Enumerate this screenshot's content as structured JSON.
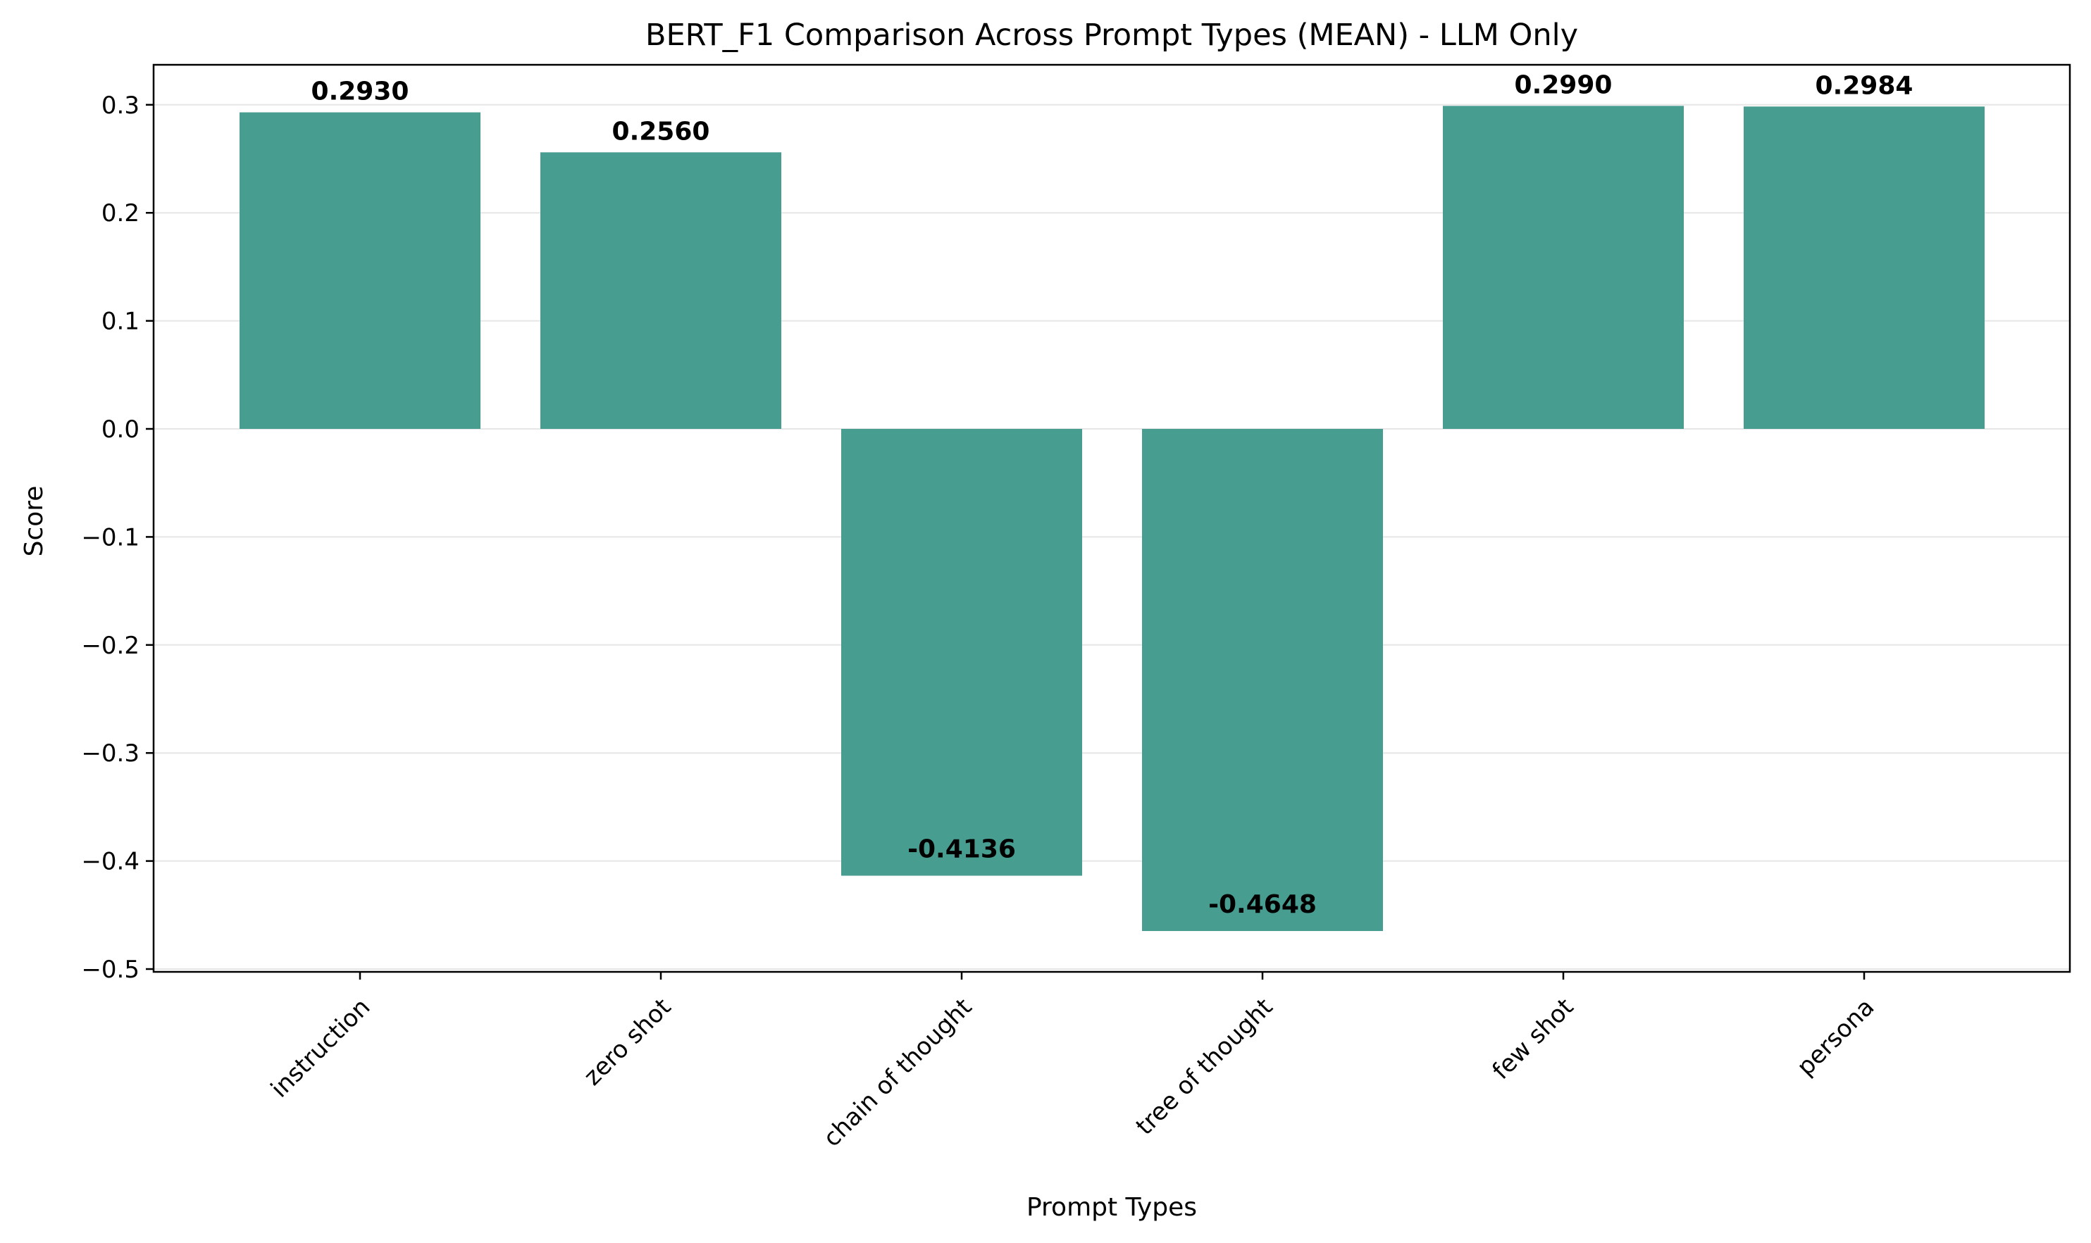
{
  "chart_data": {
    "type": "bar",
    "title": "BERT_F1 Comparison Across Prompt Types (MEAN) - LLM Only",
    "xlabel": "Prompt Types",
    "ylabel": "Score",
    "categories": [
      "instruction",
      "zero shot",
      "chain of thought",
      "tree of thought",
      "few shot",
      "persona"
    ],
    "values": [
      0.293,
      0.256,
      -0.4136,
      -0.4648,
      0.299,
      0.2984
    ],
    "value_labels": [
      "0.2930",
      "0.2560",
      "-0.4136",
      "-0.4648",
      "0.2990",
      "0.2984"
    ],
    "ylim": [
      -0.5,
      0.3
    ],
    "yticks": [
      0.3,
      0.2,
      0.1,
      0.0,
      -0.1,
      -0.2,
      -0.3,
      -0.4,
      -0.5
    ],
    "ytick_labels": [
      "0.3",
      "0.2",
      "0.1",
      "0.0",
      "−0.1",
      "−0.2",
      "−0.3",
      "−0.4",
      "−0.5"
    ],
    "grid": "y",
    "bar_color": "#489d91",
    "grid_color": "#e6e6e6"
  }
}
